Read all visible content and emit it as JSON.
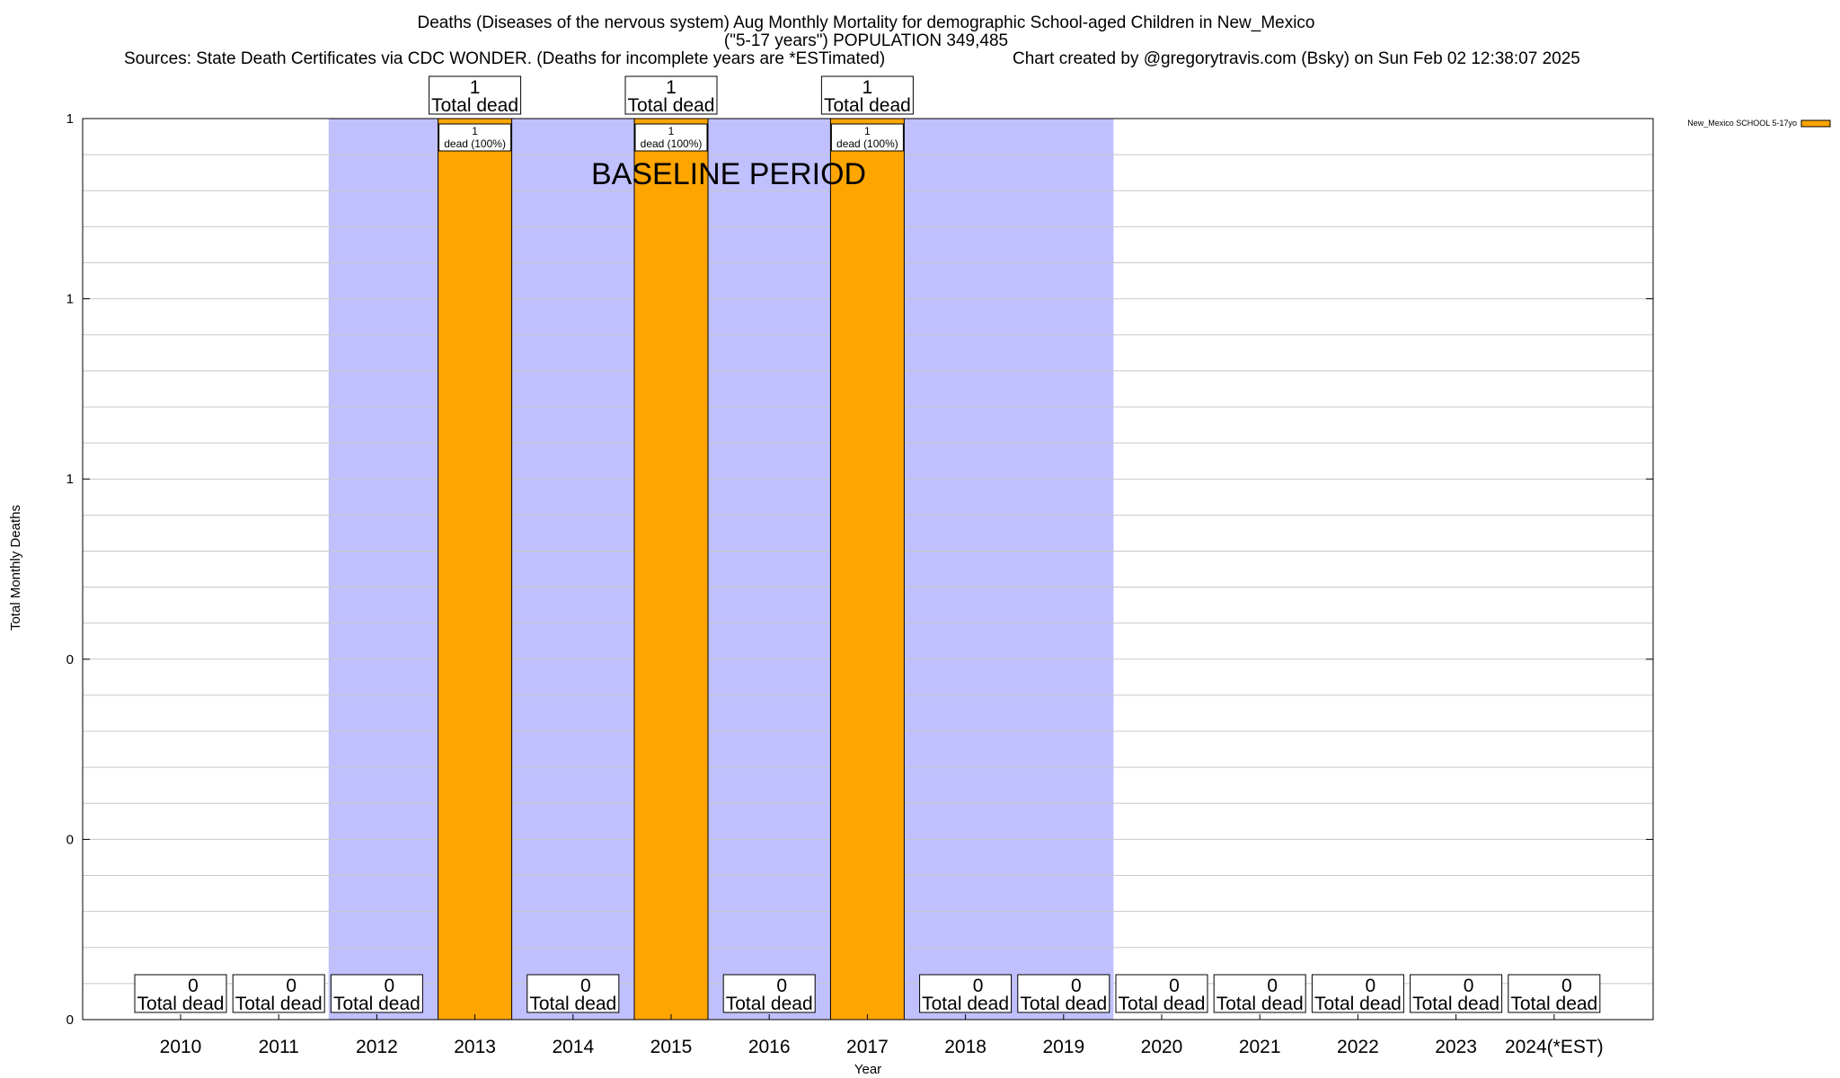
{
  "chart_data": {
    "type": "bar",
    "title_lines": [
      "Deaths (Diseases of the nervous system) Aug Monthly Mortality for demographic School-aged Children in New_Mexico",
      "(\"5-17 years\") POPULATION 349,485"
    ],
    "sources_text": "Sources: State Death Certificates via CDC WONDER. (Deaths for incomplete years are *ESTimated)",
    "credit_text": "Chart created by @gregorytravis.com (Bsky) on Sun Feb 02 12:38:07 2025",
    "xlabel": "Year",
    "ylabel": "Total Monthly Deaths",
    "ylim": [
      0,
      1
    ],
    "y_tick_labels": [
      "0",
      "0",
      "0",
      "1",
      "1",
      "1"
    ],
    "categories": [
      "2010",
      "2011",
      "2012",
      "2013",
      "2014",
      "2015",
      "2016",
      "2017",
      "2018",
      "2019",
      "2020",
      "2021",
      "2022",
      "2023",
      "2024(*EST)"
    ],
    "series": [
      {
        "name": "New_Mexico SCHOOL 5-17yo",
        "color": "#FFA500",
        "values": [
          0,
          0,
          0,
          1,
          0,
          1,
          0,
          1,
          0,
          0,
          0,
          0,
          0,
          0,
          0
        ]
      }
    ],
    "total_labels": [
      "0",
      "0",
      "0",
      "1",
      "0",
      "1",
      "0",
      "1",
      "0",
      "0",
      "0",
      "0",
      "0",
      "0",
      "0"
    ],
    "total_suffix": "Total dead",
    "segment_labels": {
      "count": "1",
      "text": "dead (100%)"
    },
    "baseline_period": {
      "label": "BASELINE PERIOD",
      "start": "2012",
      "end": "2019",
      "color": "#C0C0FF"
    },
    "grid": true,
    "legend_position": "top-right"
  }
}
